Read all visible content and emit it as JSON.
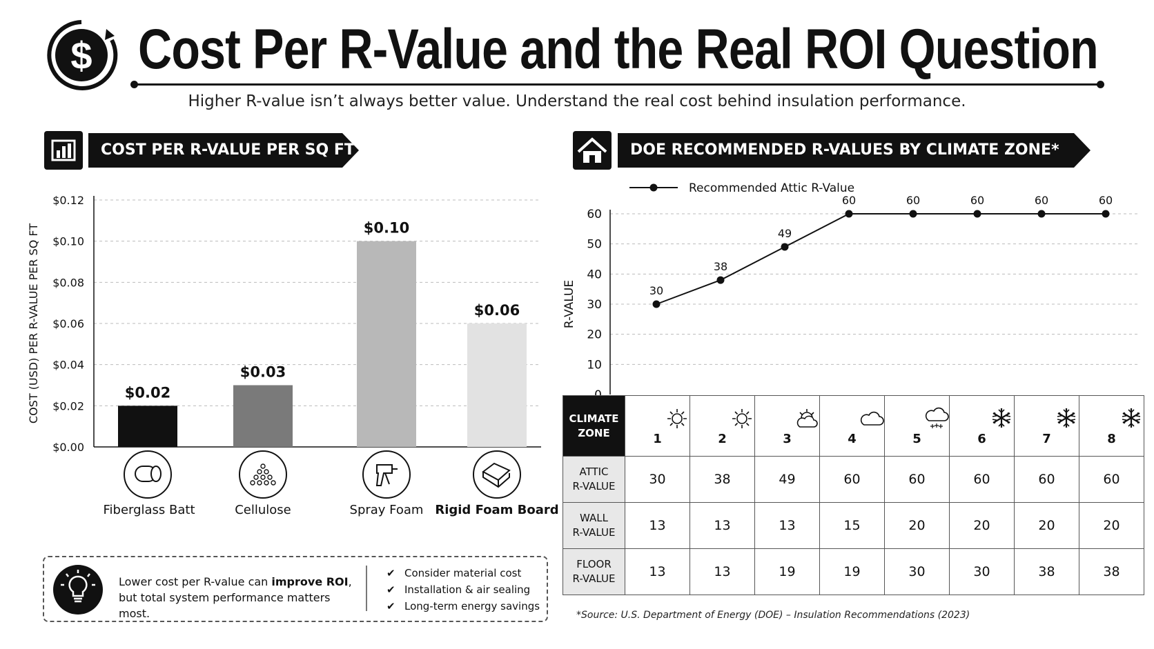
{
  "title": "Cost Per R-Value and the Real ROI Question",
  "subtitle": "Higher R-value isn’t always better value. Understand the real cost behind insulation performance.",
  "left_panel": {
    "banner": "COST PER R-VALUE PER SQ FT",
    "banner_icon": "bar-chart-icon"
  },
  "right_panel": {
    "banner": "DOE RECOMMENDED R-VALUES BY CLIMATE ZONE*",
    "banner_icon": "house-icon"
  },
  "chart_data": [
    {
      "type": "bar",
      "title": "COST PER R-VALUE PER SQ FT",
      "categories": [
        "Fiberglass Batt",
        "Cellulose",
        "Spray Foam",
        "Rigid Foam Board"
      ],
      "values": [
        0.02,
        0.03,
        0.1,
        0.06
      ],
      "value_labels": [
        "$0.02",
        "$0.03",
        "$0.10",
        "$0.06"
      ],
      "ylabel": "COST (USD) PER R-VALUE PER SQ FT",
      "ylim": [
        0,
        0.12
      ],
      "yticks": [
        "$0.00",
        "$0.02",
        "$0.04",
        "$0.06",
        "$0.08",
        "$0.10",
        "$0.12"
      ],
      "bar_colors": [
        "#111111",
        "#7a7a7a",
        "#b8b8b8",
        "#e2e2e2"
      ],
      "category_icons": [
        "insulation-roll-icon",
        "loose-fill-pile-icon",
        "spray-gun-icon",
        "foam-board-icon"
      ],
      "grid": true
    },
    {
      "type": "line",
      "title": "DOE RECOMMENDED R-VALUES BY CLIMATE ZONE*",
      "x": [
        1,
        2,
        3,
        4,
        5,
        6,
        7,
        8
      ],
      "series": [
        {
          "name": "Recommended Attic R-Value",
          "values": [
            30,
            38,
            49,
            60,
            60,
            60,
            60,
            60
          ]
        }
      ],
      "ylabel": "R-VALUE",
      "ylim": [
        0,
        60
      ],
      "yticks": [
        "0",
        "10",
        "20",
        "30",
        "40",
        "50",
        "60"
      ],
      "legend": "top-left",
      "grid": true
    }
  ],
  "table": {
    "corner": [
      "CLIMATE",
      "ZONE"
    ],
    "zones": [
      "1",
      "2",
      "3",
      "4",
      "5",
      "6",
      "7",
      "8"
    ],
    "zone_icons": [
      "sun-icon",
      "sun-icon",
      "partly-cloudy-icon",
      "cloud-icon",
      "snow-cloud-icon",
      "snowflake-icon",
      "snowflake-icon",
      "snowflake-icon"
    ],
    "rows": [
      {
        "label": [
          "ATTIC",
          "R-VALUE"
        ],
        "values": [
          "30",
          "38",
          "49",
          "60",
          "60",
          "60",
          "60",
          "60"
        ]
      },
      {
        "label": [
          "WALL",
          "R-VALUE"
        ],
        "values": [
          "13",
          "13",
          "13",
          "15",
          "20",
          "20",
          "20",
          "20"
        ]
      },
      {
        "label": [
          "FLOOR",
          "R-VALUE"
        ],
        "values": [
          "13",
          "13",
          "19",
          "19",
          "30",
          "30",
          "38",
          "38"
        ]
      }
    ]
  },
  "note": {
    "icon": "lightbulb-icon",
    "line1_a": "Lower cost per R-value can ",
    "line1_b": "improve ROI",
    "line1_c": ",",
    "line2": "but total system performance matters most.",
    "checklist": [
      "Consider material cost",
      "Installation & air sealing",
      "Long-term energy savings"
    ]
  },
  "source": "*Source: U.S. Department of Energy (DOE) – Insulation Recommendations (2023)"
}
